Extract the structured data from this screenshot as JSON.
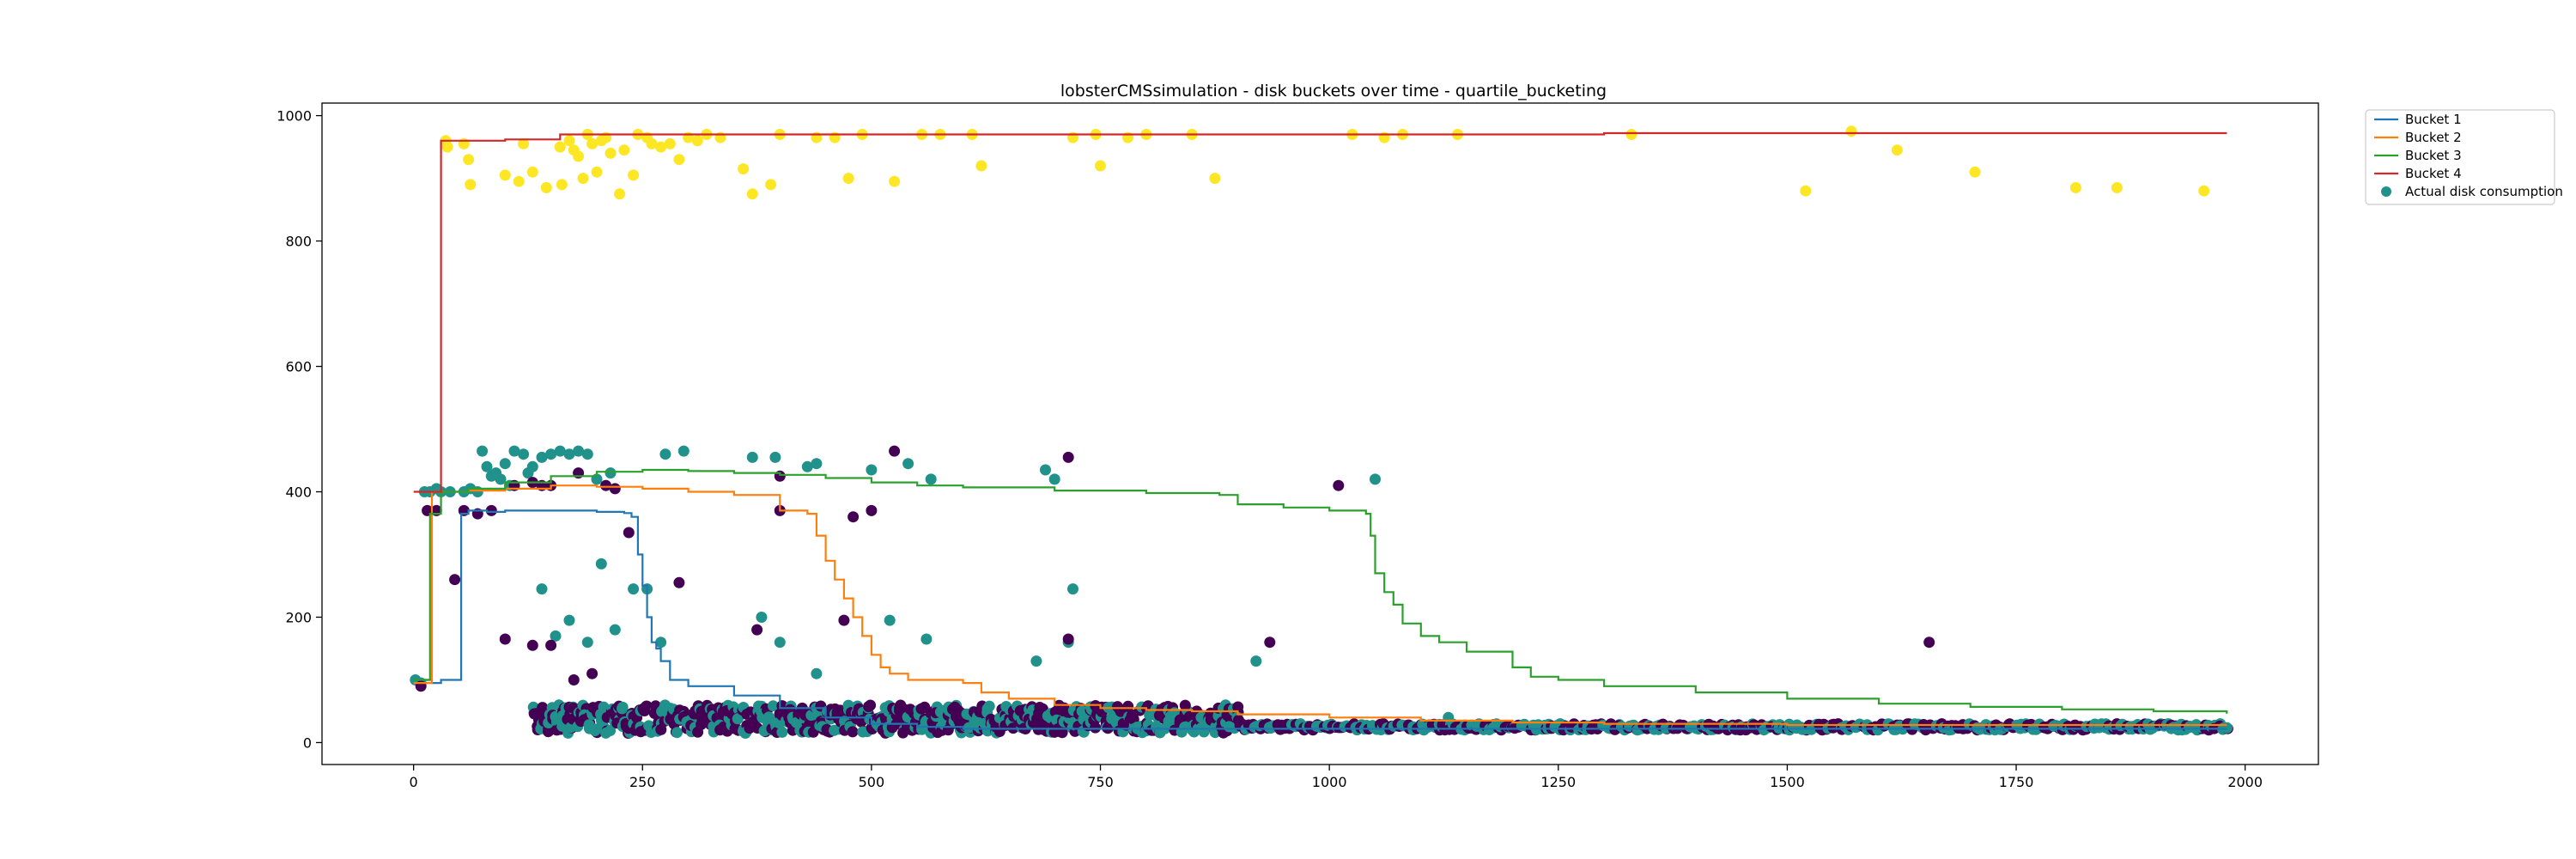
{
  "chart_data": {
    "type": "line",
    "title": "lobsterCMSsimulation - disk buckets over time - quartile_bucketing",
    "xlabel": "",
    "ylabel": "",
    "xlim": [
      -100,
      2080
    ],
    "ylim": [
      -35,
      1020
    ],
    "x_ticks": [
      0,
      250,
      500,
      750,
      1000,
      1250,
      1500,
      1750,
      2000
    ],
    "y_ticks": [
      0,
      200,
      400,
      600,
      800,
      1000
    ],
    "grid": false,
    "legend_position": "outside-top-right",
    "colors": {
      "bucket1": "#1f77b4",
      "bucket2": "#ff7f0e",
      "bucket3": "#2ca02c",
      "bucket4": "#d62728",
      "scatter_yellow": "#fde725",
      "scatter_teal": "#21918c",
      "scatter_purple": "#440154"
    },
    "series": [
      {
        "name": "Bucket 1",
        "kind": "step",
        "x": [
          0,
          12,
          20,
          30,
          45,
          52,
          60,
          80,
          100,
          150,
          200,
          230,
          238,
          245,
          250,
          255,
          260,
          265,
          270,
          280,
          300,
          350,
          400,
          450,
          500,
          550,
          600,
          700,
          800,
          900,
          1000,
          1200,
          1500,
          1980
        ],
        "y": [
          100,
          100,
          95,
          100,
          100,
          365,
          370,
          368,
          370,
          370,
          368,
          366,
          360,
          300,
          250,
          200,
          160,
          150,
          130,
          100,
          90,
          75,
          55,
          40,
          30,
          25,
          22,
          22,
          22,
          22,
          22,
          22,
          22,
          22
        ]
      },
      {
        "name": "Bucket 2",
        "kind": "step",
        "x": [
          0,
          10,
          20,
          28,
          60,
          100,
          150,
          200,
          250,
          300,
          350,
          400,
          430,
          440,
          450,
          460,
          470,
          480,
          490,
          500,
          510,
          520,
          540,
          560,
          600,
          620,
          650,
          700,
          750,
          800,
          850,
          900,
          1000,
          1100,
          1200,
          1300,
          1400,
          1500,
          1980
        ],
        "y": [
          95,
          95,
          400,
          400,
          402,
          405,
          410,
          408,
          405,
          400,
          395,
          370,
          365,
          330,
          290,
          260,
          230,
          200,
          170,
          140,
          120,
          110,
          100,
          100,
          95,
          80,
          70,
          60,
          55,
          52,
          50,
          45,
          40,
          35,
          32,
          30,
          30,
          28,
          28
        ]
      },
      {
        "name": "Bucket 3",
        "kind": "step",
        "x": [
          0,
          12,
          18,
          30,
          60,
          100,
          150,
          200,
          250,
          300,
          350,
          400,
          450,
          500,
          550,
          600,
          700,
          800,
          880,
          900,
          950,
          1000,
          1040,
          1045,
          1050,
          1060,
          1070,
          1080,
          1100,
          1120,
          1150,
          1200,
          1220,
          1250,
          1300,
          1400,
          1500,
          1600,
          1700,
          1800,
          1900,
          1980
        ],
        "y": [
          100,
          100,
          365,
          400,
          405,
          415,
          425,
          432,
          435,
          433,
          430,
          427,
          422,
          415,
          410,
          407,
          402,
          398,
          395,
          380,
          375,
          370,
          365,
          330,
          270,
          240,
          220,
          190,
          170,
          160,
          145,
          120,
          105,
          100,
          90,
          80,
          70,
          62,
          57,
          53,
          50,
          46
        ]
      },
      {
        "name": "Bucket 4",
        "kind": "step",
        "x": [
          0,
          20,
          30,
          35,
          100,
          160,
          200,
          300,
          400,
          600,
          800,
          1000,
          1300,
          1600,
          1980
        ],
        "y": [
          400,
          400,
          960,
          960,
          962,
          970,
          970,
          970,
          970,
          970,
          970,
          970,
          972,
          972,
          972
        ]
      }
    ],
    "scatter": {
      "name": "Actual disk consumption",
      "points": [
        {
          "x": 35,
          "y": 960,
          "c": "yellow"
        },
        {
          "x": 37,
          "y": 950,
          "c": "yellow"
        },
        {
          "x": 55,
          "y": 955,
          "c": "yellow"
        },
        {
          "x": 60,
          "y": 930,
          "c": "yellow"
        },
        {
          "x": 62,
          "y": 890,
          "c": "yellow"
        },
        {
          "x": 100,
          "y": 905,
          "c": "yellow"
        },
        {
          "x": 115,
          "y": 895,
          "c": "yellow"
        },
        {
          "x": 120,
          "y": 955,
          "c": "yellow"
        },
        {
          "x": 130,
          "y": 910,
          "c": "yellow"
        },
        {
          "x": 145,
          "y": 885,
          "c": "yellow"
        },
        {
          "x": 160,
          "y": 950,
          "c": "yellow"
        },
        {
          "x": 162,
          "y": 890,
          "c": "yellow"
        },
        {
          "x": 170,
          "y": 960,
          "c": "yellow"
        },
        {
          "x": 175,
          "y": 945,
          "c": "yellow"
        },
        {
          "x": 180,
          "y": 935,
          "c": "yellow"
        },
        {
          "x": 185,
          "y": 900,
          "c": "yellow"
        },
        {
          "x": 190,
          "y": 970,
          "c": "yellow"
        },
        {
          "x": 195,
          "y": 955,
          "c": "yellow"
        },
        {
          "x": 200,
          "y": 910,
          "c": "yellow"
        },
        {
          "x": 205,
          "y": 960,
          "c": "yellow"
        },
        {
          "x": 210,
          "y": 965,
          "c": "yellow"
        },
        {
          "x": 215,
          "y": 940,
          "c": "yellow"
        },
        {
          "x": 225,
          "y": 875,
          "c": "yellow"
        },
        {
          "x": 230,
          "y": 945,
          "c": "yellow"
        },
        {
          "x": 240,
          "y": 905,
          "c": "yellow"
        },
        {
          "x": 245,
          "y": 970,
          "c": "yellow"
        },
        {
          "x": 255,
          "y": 965,
          "c": "yellow"
        },
        {
          "x": 260,
          "y": 955,
          "c": "yellow"
        },
        {
          "x": 270,
          "y": 950,
          "c": "yellow"
        },
        {
          "x": 280,
          "y": 955,
          "c": "yellow"
        },
        {
          "x": 290,
          "y": 930,
          "c": "yellow"
        },
        {
          "x": 300,
          "y": 965,
          "c": "yellow"
        },
        {
          "x": 310,
          "y": 960,
          "c": "yellow"
        },
        {
          "x": 320,
          "y": 970,
          "c": "yellow"
        },
        {
          "x": 335,
          "y": 965,
          "c": "yellow"
        },
        {
          "x": 360,
          "y": 915,
          "c": "yellow"
        },
        {
          "x": 370,
          "y": 875,
          "c": "yellow"
        },
        {
          "x": 390,
          "y": 890,
          "c": "yellow"
        },
        {
          "x": 400,
          "y": 970,
          "c": "yellow"
        },
        {
          "x": 440,
          "y": 965,
          "c": "yellow"
        },
        {
          "x": 460,
          "y": 965,
          "c": "yellow"
        },
        {
          "x": 475,
          "y": 900,
          "c": "yellow"
        },
        {
          "x": 490,
          "y": 970,
          "c": "yellow"
        },
        {
          "x": 525,
          "y": 895,
          "c": "yellow"
        },
        {
          "x": 555,
          "y": 970,
          "c": "yellow"
        },
        {
          "x": 575,
          "y": 970,
          "c": "yellow"
        },
        {
          "x": 610,
          "y": 970,
          "c": "yellow"
        },
        {
          "x": 620,
          "y": 920,
          "c": "yellow"
        },
        {
          "x": 720,
          "y": 965,
          "c": "yellow"
        },
        {
          "x": 745,
          "y": 970,
          "c": "yellow"
        },
        {
          "x": 750,
          "y": 920,
          "c": "yellow"
        },
        {
          "x": 780,
          "y": 965,
          "c": "yellow"
        },
        {
          "x": 800,
          "y": 970,
          "c": "yellow"
        },
        {
          "x": 850,
          "y": 970,
          "c": "yellow"
        },
        {
          "x": 875,
          "y": 900,
          "c": "yellow"
        },
        {
          "x": 1025,
          "y": 970,
          "c": "yellow"
        },
        {
          "x": 1060,
          "y": 965,
          "c": "yellow"
        },
        {
          "x": 1080,
          "y": 970,
          "c": "yellow"
        },
        {
          "x": 1140,
          "y": 970,
          "c": "yellow"
        },
        {
          "x": 1330,
          "y": 970,
          "c": "yellow"
        },
        {
          "x": 1520,
          "y": 880,
          "c": "yellow"
        },
        {
          "x": 1570,
          "y": 975,
          "c": "yellow"
        },
        {
          "x": 1620,
          "y": 945,
          "c": "yellow"
        },
        {
          "x": 1705,
          "y": 910,
          "c": "yellow"
        },
        {
          "x": 1815,
          "y": 885,
          "c": "yellow"
        },
        {
          "x": 1860,
          "y": 885,
          "c": "yellow"
        },
        {
          "x": 1955,
          "y": 880,
          "c": "yellow"
        },
        {
          "x": 2,
          "y": 100,
          "c": "teal"
        },
        {
          "x": 8,
          "y": 95,
          "c": "teal"
        },
        {
          "x": 12,
          "y": 400,
          "c": "teal"
        },
        {
          "x": 18,
          "y": 400,
          "c": "teal"
        },
        {
          "x": 25,
          "y": 405,
          "c": "teal"
        },
        {
          "x": 30,
          "y": 400,
          "c": "teal"
        },
        {
          "x": 40,
          "y": 400,
          "c": "teal"
        },
        {
          "x": 55,
          "y": 400,
          "c": "teal"
        },
        {
          "x": 62,
          "y": 405,
          "c": "teal"
        },
        {
          "x": 70,
          "y": 400,
          "c": "teal"
        },
        {
          "x": 75,
          "y": 465,
          "c": "teal"
        },
        {
          "x": 80,
          "y": 440,
          "c": "teal"
        },
        {
          "x": 85,
          "y": 425,
          "c": "teal"
        },
        {
          "x": 90,
          "y": 430,
          "c": "teal"
        },
        {
          "x": 95,
          "y": 420,
          "c": "teal"
        },
        {
          "x": 100,
          "y": 445,
          "c": "teal"
        },
        {
          "x": 105,
          "y": 410,
          "c": "teal"
        },
        {
          "x": 110,
          "y": 465,
          "c": "teal"
        },
        {
          "x": 120,
          "y": 460,
          "c": "teal"
        },
        {
          "x": 125,
          "y": 430,
          "c": "teal"
        },
        {
          "x": 130,
          "y": 440,
          "c": "teal"
        },
        {
          "x": 140,
          "y": 455,
          "c": "teal"
        },
        {
          "x": 150,
          "y": 460,
          "c": "teal"
        },
        {
          "x": 160,
          "y": 465,
          "c": "teal"
        },
        {
          "x": 170,
          "y": 460,
          "c": "teal"
        },
        {
          "x": 180,
          "y": 465,
          "c": "teal"
        },
        {
          "x": 190,
          "y": 460,
          "c": "teal"
        },
        {
          "x": 200,
          "y": 420,
          "c": "teal"
        },
        {
          "x": 215,
          "y": 430,
          "c": "teal"
        },
        {
          "x": 275,
          "y": 460,
          "c": "teal"
        },
        {
          "x": 295,
          "y": 465,
          "c": "teal"
        },
        {
          "x": 370,
          "y": 455,
          "c": "teal"
        },
        {
          "x": 395,
          "y": 455,
          "c": "teal"
        },
        {
          "x": 430,
          "y": 440,
          "c": "teal"
        },
        {
          "x": 440,
          "y": 445,
          "c": "teal"
        },
        {
          "x": 500,
          "y": 435,
          "c": "teal"
        },
        {
          "x": 540,
          "y": 445,
          "c": "teal"
        },
        {
          "x": 565,
          "y": 420,
          "c": "teal"
        },
        {
          "x": 690,
          "y": 435,
          "c": "teal"
        },
        {
          "x": 700,
          "y": 420,
          "c": "teal"
        },
        {
          "x": 1050,
          "y": 420,
          "c": "teal"
        },
        {
          "x": 140,
          "y": 245,
          "c": "teal"
        },
        {
          "x": 155,
          "y": 170,
          "c": "teal"
        },
        {
          "x": 170,
          "y": 195,
          "c": "teal"
        },
        {
          "x": 190,
          "y": 160,
          "c": "teal"
        },
        {
          "x": 205,
          "y": 285,
          "c": "teal"
        },
        {
          "x": 220,
          "y": 180,
          "c": "teal"
        },
        {
          "x": 240,
          "y": 245,
          "c": "teal"
        },
        {
          "x": 255,
          "y": 245,
          "c": "teal"
        },
        {
          "x": 270,
          "y": 160,
          "c": "teal"
        },
        {
          "x": 380,
          "y": 200,
          "c": "teal"
        },
        {
          "x": 400,
          "y": 160,
          "c": "teal"
        },
        {
          "x": 440,
          "y": 110,
          "c": "teal"
        },
        {
          "x": 520,
          "y": 195,
          "c": "teal"
        },
        {
          "x": 560,
          "y": 165,
          "c": "teal"
        },
        {
          "x": 720,
          "y": 245,
          "c": "teal"
        },
        {
          "x": 715,
          "y": 160,
          "c": "teal"
        },
        {
          "x": 680,
          "y": 130,
          "c": "teal"
        },
        {
          "x": 920,
          "y": 130,
          "c": "teal"
        },
        {
          "x": 1130,
          "y": 40,
          "c": "teal"
        },
        {
          "x": 100,
          "y": 165,
          "c": "purple"
        },
        {
          "x": 130,
          "y": 155,
          "c": "purple"
        },
        {
          "x": 150,
          "y": 155,
          "c": "purple"
        },
        {
          "x": 175,
          "y": 100,
          "c": "purple"
        },
        {
          "x": 195,
          "y": 110,
          "c": "purple"
        },
        {
          "x": 235,
          "y": 335,
          "c": "purple"
        },
        {
          "x": 290,
          "y": 255,
          "c": "purple"
        },
        {
          "x": 375,
          "y": 180,
          "c": "purple"
        },
        {
          "x": 470,
          "y": 195,
          "c": "purple"
        },
        {
          "x": 715,
          "y": 165,
          "c": "purple"
        },
        {
          "x": 935,
          "y": 160,
          "c": "purple"
        },
        {
          "x": 1655,
          "y": 160,
          "c": "purple"
        },
        {
          "x": 1010,
          "y": 410,
          "c": "purple"
        },
        {
          "x": 715,
          "y": 455,
          "c": "purple"
        },
        {
          "x": 525,
          "y": 465,
          "c": "purple"
        },
        {
          "x": 400,
          "y": 425,
          "c": "purple"
        },
        {
          "x": 400,
          "y": 370,
          "c": "purple"
        },
        {
          "x": 480,
          "y": 360,
          "c": "purple"
        },
        {
          "x": 500,
          "y": 370,
          "c": "purple"
        },
        {
          "x": 8,
          "y": 90,
          "c": "purple"
        },
        {
          "x": 15,
          "y": 370,
          "c": "purple"
        },
        {
          "x": 25,
          "y": 370,
          "c": "purple"
        },
        {
          "x": 45,
          "y": 260,
          "c": "purple"
        },
        {
          "x": 55,
          "y": 370,
          "c": "purple"
        },
        {
          "x": 70,
          "y": 365,
          "c": "purple"
        },
        {
          "x": 85,
          "y": 370,
          "c": "purple"
        },
        {
          "x": 110,
          "y": 410,
          "c": "purple"
        },
        {
          "x": 130,
          "y": 415,
          "c": "purple"
        },
        {
          "x": 150,
          "y": 410,
          "c": "purple"
        },
        {
          "x": 180,
          "y": 430,
          "c": "purple"
        },
        {
          "x": 210,
          "y": 410,
          "c": "purple"
        },
        {
          "x": 220,
          "y": 405,
          "c": "purple"
        },
        {
          "x": 140,
          "y": 410,
          "c": "purple"
        }
      ],
      "dense_band": {
        "x_start": 130,
        "x_end": 1980,
        "y_low": 15,
        "y_high": 60,
        "y_low_late": 20,
        "y_high_late": 30
      }
    }
  }
}
